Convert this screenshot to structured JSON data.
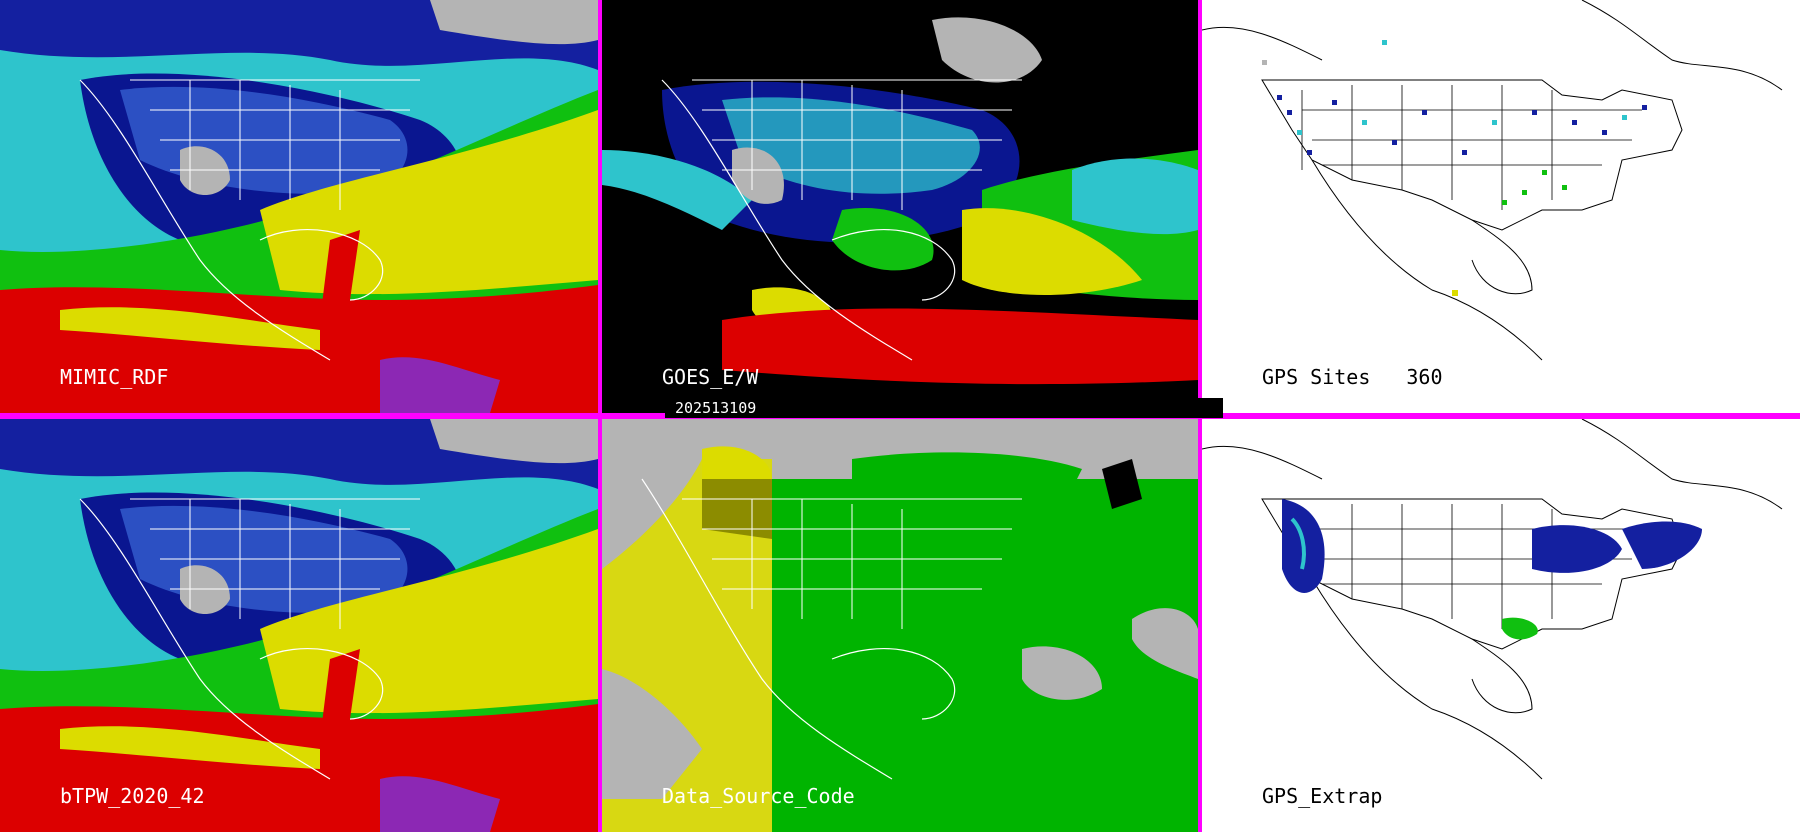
{
  "panels": [
    {
      "id": "mimic",
      "label": "MIMIC_RDF"
    },
    {
      "id": "goes",
      "label": "GOES_E/W"
    },
    {
      "id": "gps_sites",
      "label": "GPS Sites",
      "count": "360"
    },
    {
      "id": "btpw",
      "label": "bTPW_2020_42"
    },
    {
      "id": "data_source",
      "label": "Data_Source_Code"
    },
    {
      "id": "gps_extrap",
      "label": "GPS_Extrap"
    }
  ],
  "timestamp": "202513109",
  "colors": {
    "divider": "#ff00ff",
    "water_cyan": "#2ec4cc",
    "moist_blue": "#00148c",
    "dry_gray": "#b4b4b4",
    "green": "#00b400",
    "yellow": "#dcdc00",
    "red": "#dc0000",
    "purple": "#8c28b4",
    "black": "#000000"
  }
}
